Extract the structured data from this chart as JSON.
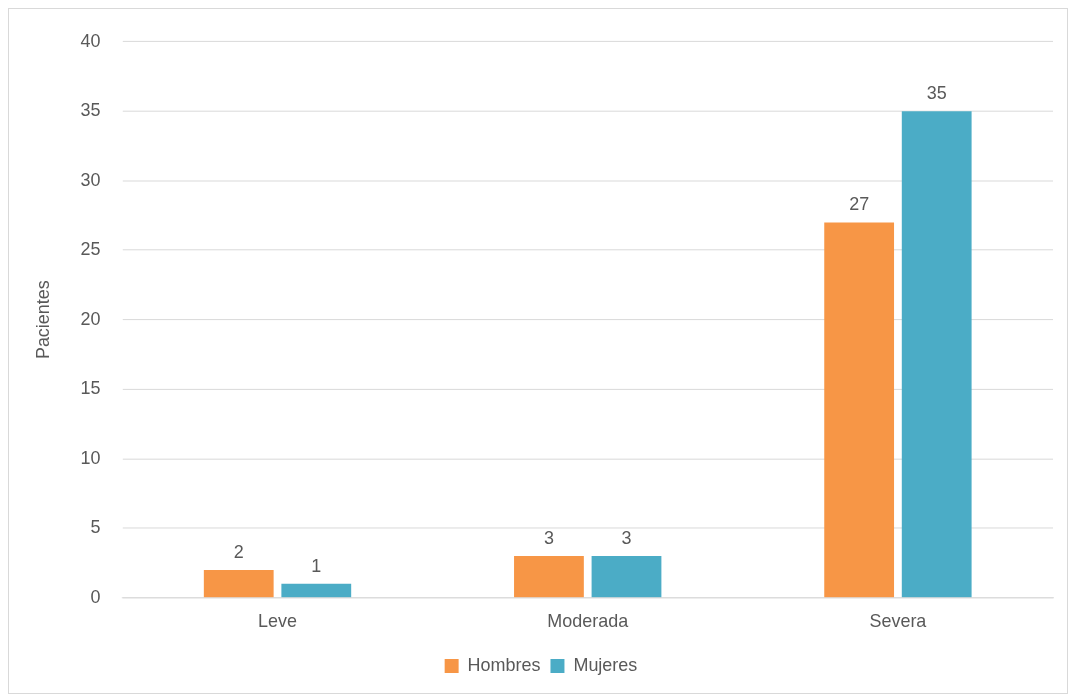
{
  "chart_data": {
    "type": "bar",
    "ylabel": "Pacientes",
    "categories": [
      "Leve",
      "Moderada",
      "Severa"
    ],
    "series": [
      {
        "name": "Hombres",
        "color": "#f79646",
        "values": [
          2,
          3,
          27
        ]
      },
      {
        "name": "Mujeres",
        "color": "#4bacc6",
        "values": [
          1,
          3,
          35
        ]
      }
    ],
    "ylim": [
      0,
      40
    ],
    "yticks": [
      0,
      5,
      10,
      15,
      20,
      25,
      30,
      35,
      40
    ],
    "grid": "y",
    "legend": "bottom",
    "data_labels": true
  }
}
